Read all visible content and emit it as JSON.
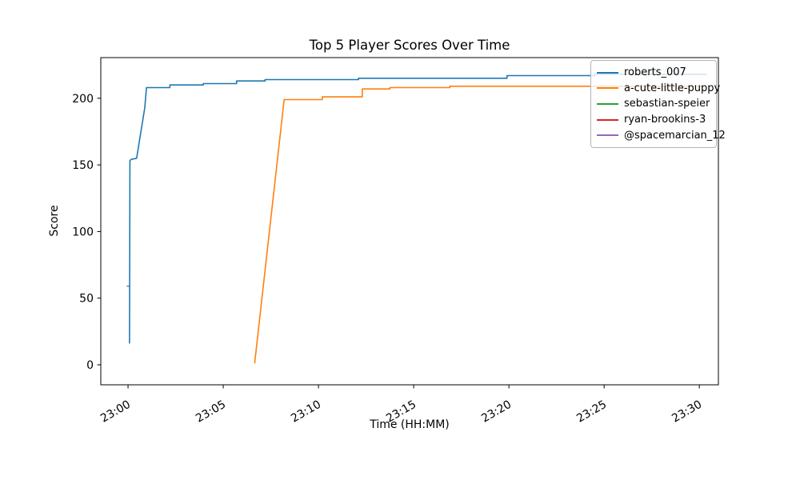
{
  "figure": {
    "title": "Top 5 Player Scores Over Time",
    "xlabel": "Time (HH:MM)",
    "ylabel": "Score"
  },
  "chart_data": {
    "type": "line",
    "title": "Top 5 Player Scores Over Time",
    "xlabel": "Time (HH:MM)",
    "ylabel": "Score",
    "x_unit": "minutes after 23:00",
    "xlim": [
      -1.43,
      31.0
    ],
    "ylim": [
      -15,
      230.5
    ],
    "grid": false,
    "legend_position": "upper right",
    "x_ticks": [
      {
        "minute": 0,
        "label": "23:00"
      },
      {
        "minute": 5,
        "label": "23:05"
      },
      {
        "minute": 10,
        "label": "23:10"
      },
      {
        "minute": 15,
        "label": "23:15"
      },
      {
        "minute": 20,
        "label": "23:20"
      },
      {
        "minute": 25,
        "label": "23:25"
      },
      {
        "minute": 30,
        "label": "23:30"
      }
    ],
    "y_ticks": [
      {
        "value": 0,
        "label": "0"
      },
      {
        "value": 50,
        "label": "50"
      },
      {
        "value": 100,
        "label": "100"
      },
      {
        "value": 150,
        "label": "150"
      },
      {
        "value": 200,
        "label": "200"
      }
    ],
    "series": [
      {
        "name": "roberts_007",
        "color": "#1f77b4",
        "points": [
          [
            0.08,
            16
          ],
          [
            0.1,
            153
          ],
          [
            0.15,
            154
          ],
          [
            0.45,
            155
          ],
          [
            0.88,
            193
          ],
          [
            0.97,
            208
          ],
          [
            2.2,
            208
          ],
          [
            2.2,
            210
          ],
          [
            3.95,
            210
          ],
          [
            3.95,
            211
          ],
          [
            5.7,
            211
          ],
          [
            5.7,
            213
          ],
          [
            7.2,
            213
          ],
          [
            7.2,
            214
          ],
          [
            12.1,
            214
          ],
          [
            12.1,
            215
          ],
          [
            19.9,
            215
          ],
          [
            19.9,
            217
          ],
          [
            24.5,
            217
          ],
          [
            24.5,
            218
          ],
          [
            30.4,
            218
          ]
        ]
      },
      {
        "name": "a-cute-little-puppy",
        "color": "#ff7f0e",
        "points": [
          [
            6.65,
            1
          ],
          [
            8.2,
            199
          ],
          [
            10.2,
            199
          ],
          [
            10.2,
            201
          ],
          [
            12.3,
            201
          ],
          [
            12.3,
            207
          ],
          [
            13.75,
            207
          ],
          [
            13.75,
            208
          ],
          [
            16.9,
            208
          ],
          [
            16.9,
            209
          ],
          [
            30.2,
            209
          ]
        ]
      },
      {
        "name": "sebastian-speier",
        "color": "#2ca02c",
        "points": []
      },
      {
        "name": "ryan-brookins-3",
        "color": "#d62728",
        "points": []
      },
      {
        "name": "@spacemarcian_12",
        "color": "#9467bd",
        "points": [
          [
            -0.07,
            59
          ],
          [
            0.08,
            59
          ]
        ]
      }
    ]
  }
}
